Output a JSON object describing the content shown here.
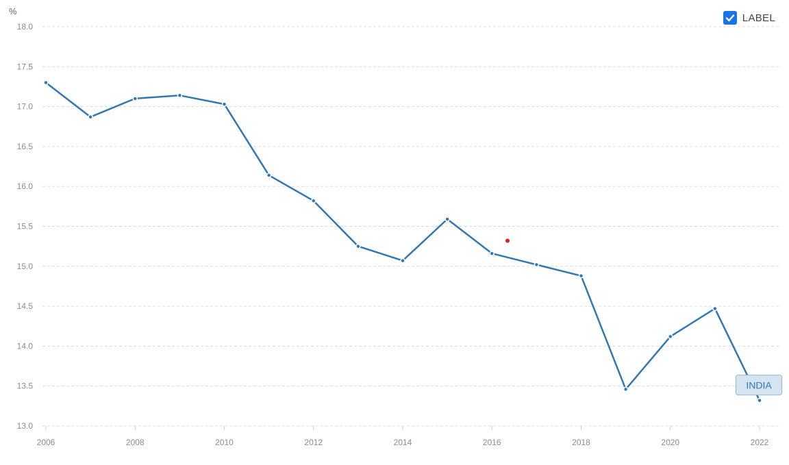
{
  "legend": {
    "label": "LABEL",
    "checked": true
  },
  "chart_data": {
    "type": "line",
    "unit_label": "%",
    "x": [
      2006,
      2007,
      2008,
      2009,
      2010,
      2011,
      2012,
      2013,
      2014,
      2015,
      2016,
      2017,
      2018,
      2019,
      2020,
      2021,
      2022
    ],
    "x_ticks": [
      "2006",
      "2008",
      "2010",
      "2012",
      "2014",
      "2016",
      "2018",
      "2020",
      "2022"
    ],
    "y_ticks": [
      "18.0",
      "17.5",
      "17.0",
      "16.5",
      "16.0",
      "15.5",
      "15.0",
      "14.5",
      "14.0",
      "13.5",
      "13.0"
    ],
    "ylim": [
      13.0,
      18.0
    ],
    "xlim": [
      2006,
      2022
    ],
    "grid": true,
    "series": [
      {
        "name": "INDIA",
        "color": "#2f78b4",
        "values": [
          17.3,
          16.87,
          17.1,
          17.14,
          17.03,
          16.14,
          15.82,
          15.25,
          15.07,
          15.59,
          15.16,
          15.02,
          14.88,
          13.46,
          14.12,
          14.47,
          13.32
        ]
      }
    ],
    "annotation_marker": {
      "x": 2016.35,
      "y": 15.32,
      "color": "#e0201b"
    }
  }
}
